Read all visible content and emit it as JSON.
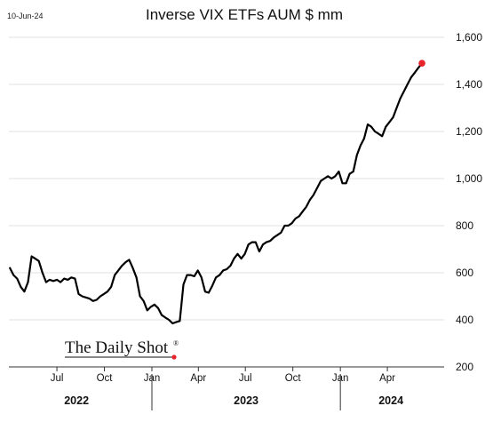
{
  "chart_data": {
    "type": "line",
    "date_stamp": "10-Jun-24",
    "title": "Inverse VIX ETFs AUM $ mm",
    "ylim": [
      200,
      1600
    ],
    "y_ticks": [
      "1,600",
      "1,400",
      "1,200",
      "1,000",
      "800",
      "600",
      "400",
      "200"
    ],
    "x_month_ticks": [
      {
        "label": "Jul",
        "date": "2022-07-01"
      },
      {
        "label": "Oct",
        "date": "2022-10-01"
      },
      {
        "label": "Jan",
        "date": "2023-01-01"
      },
      {
        "label": "Apr",
        "date": "2023-04-01"
      },
      {
        "label": "Jul",
        "date": "2023-07-01"
      },
      {
        "label": "Oct",
        "date": "2023-10-01"
      },
      {
        "label": "Jan",
        "date": "2024-01-01"
      },
      {
        "label": "Apr",
        "date": "2024-04-01"
      }
    ],
    "x_years": [
      {
        "label": "2022",
        "from": "2022-03-15",
        "to": "2023-01-01"
      },
      {
        "label": "2023",
        "from": "2023-01-01",
        "to": "2024-01-01"
      },
      {
        "label": "2024",
        "from": "2024-01-01",
        "to": "2024-07-15"
      }
    ],
    "grid": true,
    "brand": "The Daily Shot",
    "brand_mark": "®",
    "colors": {
      "line": "#000000",
      "last_point": "#e8232a",
      "grid": "#e0e0e0",
      "axis": "#333333"
    },
    "series": [
      {
        "x": [
          "2022-04-01",
          "2022-04-08",
          "2022-04-15",
          "2022-04-22",
          "2022-04-29",
          "2022-05-06",
          "2022-05-13",
          "2022-05-20",
          "2022-05-27",
          "2022-06-03",
          "2022-06-10",
          "2022-06-17",
          "2022-06-24",
          "2022-07-01",
          "2022-07-08",
          "2022-07-15",
          "2022-07-22",
          "2022-07-29",
          "2022-08-05",
          "2022-08-12",
          "2022-08-19",
          "2022-08-26",
          "2022-09-02",
          "2022-09-09",
          "2022-09-16",
          "2022-09-23",
          "2022-09-30",
          "2022-10-07",
          "2022-10-14",
          "2022-10-21",
          "2022-10-28",
          "2022-11-04",
          "2022-11-11",
          "2022-11-18",
          "2022-11-25",
          "2022-12-02",
          "2022-12-09",
          "2022-12-16",
          "2022-12-23",
          "2022-12-30",
          "2023-01-06",
          "2023-01-13",
          "2023-01-20",
          "2023-01-27",
          "2023-02-03",
          "2023-02-10",
          "2023-02-17",
          "2023-02-24",
          "2023-03-03",
          "2023-03-10",
          "2023-03-17",
          "2023-03-24",
          "2023-03-31",
          "2023-04-07",
          "2023-04-14",
          "2023-04-21",
          "2023-04-28",
          "2023-05-05",
          "2023-05-12",
          "2023-05-19",
          "2023-05-26",
          "2023-06-02",
          "2023-06-09",
          "2023-06-16",
          "2023-06-23",
          "2023-06-30",
          "2023-07-07",
          "2023-07-14",
          "2023-07-21",
          "2023-07-28",
          "2023-08-04",
          "2023-08-11",
          "2023-08-18",
          "2023-08-25",
          "2023-09-01",
          "2023-09-08",
          "2023-09-15",
          "2023-09-22",
          "2023-09-29",
          "2023-10-06",
          "2023-10-13",
          "2023-10-20",
          "2023-10-27",
          "2023-11-03",
          "2023-11-10",
          "2023-11-17",
          "2023-11-24",
          "2023-12-01",
          "2023-12-08",
          "2023-12-15",
          "2023-12-22",
          "2023-12-29",
          "2024-01-05",
          "2024-01-12",
          "2024-01-19",
          "2024-01-26",
          "2024-02-02",
          "2024-02-09",
          "2024-02-16",
          "2024-02-23",
          "2024-03-01",
          "2024-03-08",
          "2024-03-15",
          "2024-03-22",
          "2024-03-29",
          "2024-04-05",
          "2024-04-12",
          "2024-04-19",
          "2024-04-26",
          "2024-05-03",
          "2024-05-10",
          "2024-05-17",
          "2024-05-24",
          "2024-05-31",
          "2024-06-07"
        ],
        "values": [
          620,
          590,
          575,
          540,
          520,
          560,
          670,
          660,
          650,
          600,
          560,
          570,
          565,
          570,
          560,
          575,
          570,
          580,
          575,
          510,
          500,
          495,
          490,
          480,
          485,
          500,
          510,
          520,
          540,
          590,
          610,
          630,
          645,
          655,
          620,
          580,
          500,
          480,
          440,
          455,
          465,
          450,
          420,
          410,
          400,
          385,
          390,
          395,
          550,
          590,
          590,
          585,
          610,
          580,
          520,
          515,
          545,
          580,
          590,
          610,
          615,
          630,
          660,
          680,
          660,
          680,
          720,
          730,
          730,
          690,
          720,
          730,
          735,
          750,
          760,
          770,
          800,
          800,
          810,
          830,
          840,
          860,
          880,
          910,
          930,
          960,
          990,
          1000,
          1010,
          1000,
          1010,
          1030,
          980,
          980,
          1020,
          1030,
          1100,
          1140,
          1170,
          1230,
          1220,
          1200,
          1190,
          1180,
          1220,
          1240,
          1260,
          1300,
          1340,
          1370,
          1400,
          1430,
          1450,
          1470,
          1490
        ]
      }
    ]
  }
}
